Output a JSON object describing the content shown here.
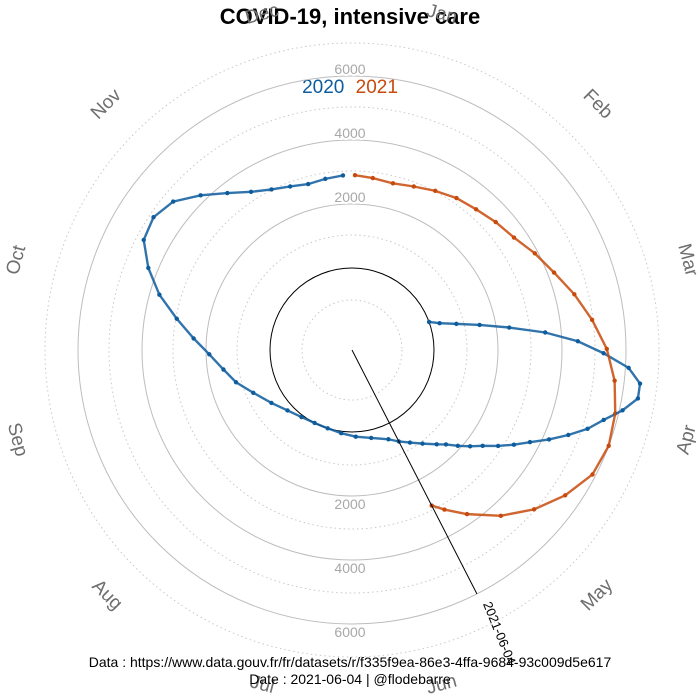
{
  "chart_data": {
    "type": "scatter",
    "coordinate_system": "polar",
    "title": "COVID-19, intensive care",
    "theta_axis": "month of year (clockwise, January at top)",
    "months": [
      "Jan",
      "Feb",
      "Mar",
      "Apr",
      "May",
      "Jun",
      "Jul",
      "Aug",
      "Sep",
      "Oct",
      "Nov",
      "Dec"
    ],
    "radial_ticks": [
      "2000",
      "4000",
      "6000"
    ],
    "radial_tick_values": [
      2000,
      4000,
      6000
    ],
    "radial_range": [
      -3000,
      7000
    ],
    "reference_circle_value": 0,
    "annotation": {
      "label": "2021-06-04",
      "day_of_year": 155,
      "value": 6000
    },
    "legend": {
      "placement": "top",
      "entries": [
        {
          "name": "2020",
          "color": "#0d5c9e"
        },
        {
          "name": "2021",
          "color": "#c84a0c"
        }
      ]
    },
    "series": [
      {
        "name": "2020",
        "color": "#0d5c9e",
        "points": [
          {
            "day": 71,
            "value": 0
          },
          {
            "day": 74,
            "value": 300
          },
          {
            "day": 77,
            "value": 800
          },
          {
            "day": 80,
            "value": 1500
          },
          {
            "day": 83,
            "value": 2400
          },
          {
            "day": 86,
            "value": 3500
          },
          {
            "day": 89,
            "value": 4500
          },
          {
            "day": 92,
            "value": 5300
          },
          {
            "day": 95,
            "value": 6100
          },
          {
            "day": 98,
            "value": 6500
          },
          {
            "day": 101,
            "value": 6500
          },
          {
            "day": 104,
            "value": 6100
          },
          {
            "day": 107,
            "value": 5600
          },
          {
            "day": 110,
            "value": 5200
          },
          {
            "day": 113,
            "value": 4700
          },
          {
            "day": 116,
            "value": 4200
          },
          {
            "day": 119,
            "value": 3700
          },
          {
            "day": 122,
            "value": 3300
          },
          {
            "day": 125,
            "value": 2900
          },
          {
            "day": 128,
            "value": 2500
          },
          {
            "day": 131,
            "value": 2200
          },
          {
            "day": 134,
            "value": 1900
          },
          {
            "day": 137,
            "value": 1600
          },
          {
            "day": 140,
            "value": 1400
          },
          {
            "day": 145,
            "value": 1100
          },
          {
            "day": 150,
            "value": 850
          },
          {
            "day": 155,
            "value": 650
          },
          {
            "day": 160,
            "value": 450
          },
          {
            "day": 170,
            "value": 250
          },
          {
            "day": 180,
            "value": 150
          },
          {
            "day": 190,
            "value": 60
          },
          {
            "day": 200,
            "value": 0
          },
          {
            "day": 210,
            "value": 0
          },
          {
            "day": 220,
            "value": 60
          },
          {
            "day": 230,
            "value": 200
          },
          {
            "day": 240,
            "value": 450
          },
          {
            "day": 250,
            "value": 800
          },
          {
            "day": 258,
            "value": 1200
          },
          {
            "day": 265,
            "value": 1500
          },
          {
            "day": 272,
            "value": 1900
          },
          {
            "day": 278,
            "value": 2400
          },
          {
            "day": 284,
            "value": 3000
          },
          {
            "day": 290,
            "value": 3700
          },
          {
            "day": 296,
            "value": 4300
          },
          {
            "day": 302,
            "value": 4800
          },
          {
            "day": 308,
            "value": 4900
          },
          {
            "day": 314,
            "value": 4700
          },
          {
            "day": 320,
            "value": 4200
          },
          {
            "day": 326,
            "value": 3700
          },
          {
            "day": 332,
            "value": 3300
          },
          {
            "day": 338,
            "value": 3050
          },
          {
            "day": 344,
            "value": 2900
          },
          {
            "day": 350,
            "value": 2800
          },
          {
            "day": 356,
            "value": 2850
          },
          {
            "day": 362,
            "value": 2900
          }
        ]
      },
      {
        "name": "2021",
        "color": "#c84a0c",
        "points": [
          {
            "day": 1,
            "value": 2900
          },
          {
            "day": 7,
            "value": 2850
          },
          {
            "day": 14,
            "value": 2800
          },
          {
            "day": 21,
            "value": 2900
          },
          {
            "day": 28,
            "value": 3050
          },
          {
            "day": 35,
            "value": 3200
          },
          {
            "day": 42,
            "value": 3300
          },
          {
            "day": 49,
            "value": 3450
          },
          {
            "day": 56,
            "value": 3600
          },
          {
            "day": 63,
            "value": 3900
          },
          {
            "day": 70,
            "value": 4200
          },
          {
            "day": 77,
            "value": 4600
          },
          {
            "day": 84,
            "value": 5000
          },
          {
            "day": 91,
            "value": 5400
          },
          {
            "day": 98,
            "value": 5700
          },
          {
            "day": 105,
            "value": 5900
          },
          {
            "day": 112,
            "value": 6000
          },
          {
            "day": 119,
            "value": 5900
          },
          {
            "day": 126,
            "value": 5500
          },
          {
            "day": 133,
            "value": 5000
          },
          {
            "day": 140,
            "value": 4400
          },
          {
            "day": 147,
            "value": 3700
          },
          {
            "day": 152,
            "value": 3200
          },
          {
            "day": 155,
            "value": 2900
          }
        ]
      }
    ]
  },
  "footer": {
    "data_line": "Data : https://www.data.gouv.fr/fr/datasets/r/f335f9ea-86e3-4ffa-9684-93c009d5e617",
    "date_line": "Date : 2021-06-04 | @flodebarre"
  }
}
